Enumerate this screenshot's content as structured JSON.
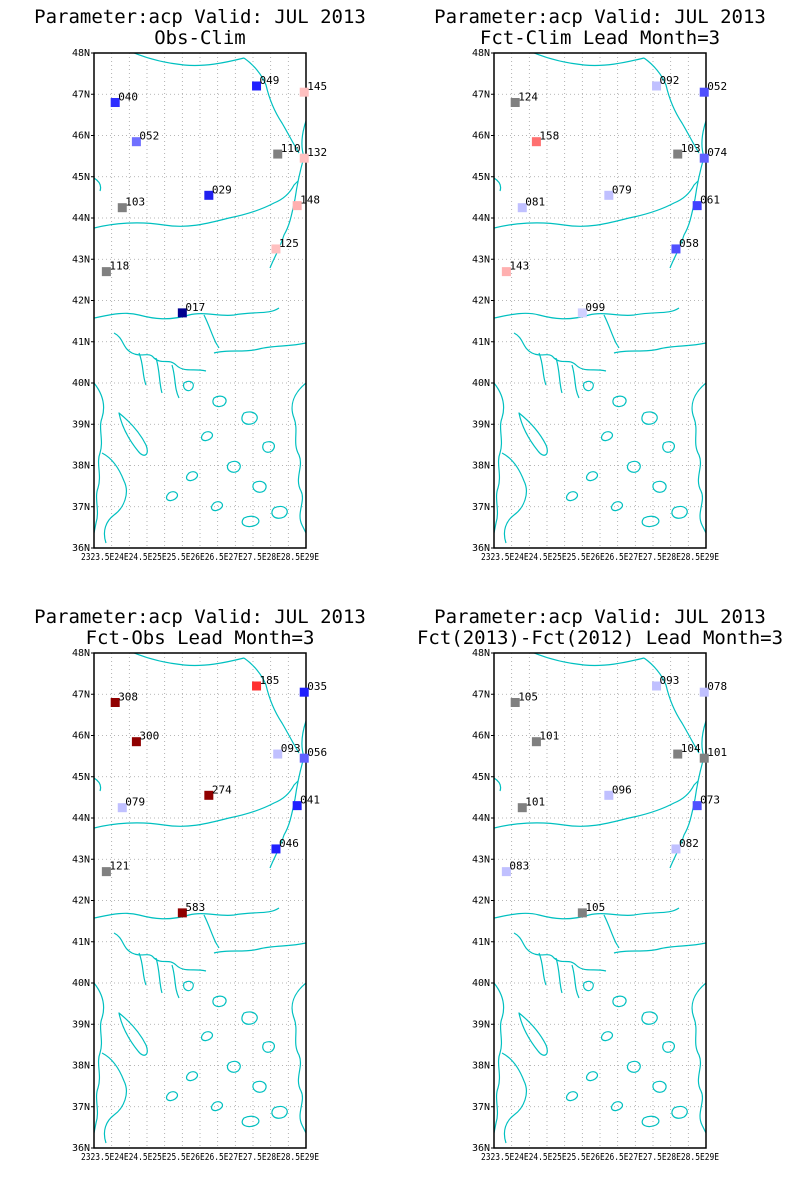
{
  "colors": {
    "coast": "#00c0c0",
    "grid": "#a0a0a0",
    "frame": "#000000",
    "text": "#000000"
  },
  "axes": {
    "lat_range": [
      36,
      48
    ],
    "lon_range": [
      23,
      29
    ],
    "y_ticks": [
      "48N",
      "47N",
      "46N",
      "45N",
      "44N",
      "43N",
      "42N",
      "41N",
      "40N",
      "39N",
      "38N",
      "37N",
      "36N"
    ],
    "x_ticks": [
      "23E",
      "23.5E",
      "24E",
      "24.5E",
      "25E",
      "25.5E",
      "26E",
      "26.5E",
      "27E",
      "27.5E",
      "28E",
      "28.5E",
      "29E"
    ],
    "x_tick_label": "2323.5E24E24.5E25E25.5E26E26.5E27E27.5E28E28.5E29E",
    "grid": true
  },
  "panels": [
    {
      "title1": "Parameter:acp Valid: JUL 2013",
      "title2": "Obs-Clim",
      "stations": [
        {
          "lon": 23.6,
          "lat": 46.8,
          "label": "040",
          "color": "#3030ff"
        },
        {
          "lon": 24.2,
          "lat": 45.85,
          "label": "052",
          "color": "#7070ff"
        },
        {
          "lon": 23.8,
          "lat": 44.25,
          "label": "103",
          "color": "#808080"
        },
        {
          "lon": 23.35,
          "lat": 42.7,
          "label": "118",
          "color": "#808080"
        },
        {
          "lon": 25.5,
          "lat": 41.7,
          "label": "017",
          "color": "#000090"
        },
        {
          "lon": 26.25,
          "lat": 44.55,
          "label": "029",
          "color": "#2020f0"
        },
        {
          "lon": 27.6,
          "lat": 47.2,
          "label": "049",
          "color": "#2020ff"
        },
        {
          "lon": 28.2,
          "lat": 45.55,
          "label": "110",
          "color": "#808080"
        },
        {
          "lon": 28.95,
          "lat": 47.05,
          "label": "145",
          "color": "#ffc0c0"
        },
        {
          "lon": 28.95,
          "lat": 45.45,
          "label": "132",
          "color": "#ffc0c0"
        },
        {
          "lon": 28.75,
          "lat": 44.3,
          "label": "148",
          "color": "#ffb0b0"
        },
        {
          "lon": 28.15,
          "lat": 43.25,
          "label": "125",
          "color": "#ffc0c0"
        }
      ]
    },
    {
      "title1": "Parameter:acp Valid: JUL 2013",
      "title2": "Fct-Clim Lead Month=3",
      "stations": [
        {
          "lon": 23.6,
          "lat": 46.8,
          "label": "124",
          "color": "#808080"
        },
        {
          "lon": 24.2,
          "lat": 45.85,
          "label": "158",
          "color": "#ff7070"
        },
        {
          "lon": 23.8,
          "lat": 44.25,
          "label": "081",
          "color": "#c0c0ff"
        },
        {
          "lon": 23.35,
          "lat": 42.7,
          "label": "143",
          "color": "#ffb0b0"
        },
        {
          "lon": 25.5,
          "lat": 41.7,
          "label": "099",
          "color": "#d0d0ff"
        },
        {
          "lon": 26.25,
          "lat": 44.55,
          "label": "079",
          "color": "#c0c0ff"
        },
        {
          "lon": 27.6,
          "lat": 47.2,
          "label": "092",
          "color": "#c0c0ff"
        },
        {
          "lon": 28.2,
          "lat": 45.55,
          "label": "103",
          "color": "#808080"
        },
        {
          "lon": 28.95,
          "lat": 47.05,
          "label": "052",
          "color": "#5050ff"
        },
        {
          "lon": 28.95,
          "lat": 45.45,
          "label": "074",
          "color": "#6060ff"
        },
        {
          "lon": 28.75,
          "lat": 44.3,
          "label": "061",
          "color": "#4040ff"
        },
        {
          "lon": 28.15,
          "lat": 43.25,
          "label": "058",
          "color": "#5050ff"
        }
      ]
    },
    {
      "title1": "Parameter:acp Valid: JUL 2013",
      "title2": "Fct-Obs Lead Month=3",
      "stations": [
        {
          "lon": 23.6,
          "lat": 46.8,
          "label": "308",
          "color": "#900000"
        },
        {
          "lon": 24.2,
          "lat": 45.85,
          "label": "300",
          "color": "#900000"
        },
        {
          "lon": 23.8,
          "lat": 44.25,
          "label": "079",
          "color": "#c0c0ff"
        },
        {
          "lon": 23.35,
          "lat": 42.7,
          "label": "121",
          "color": "#808080"
        },
        {
          "lon": 25.5,
          "lat": 41.7,
          "label": "583",
          "color": "#900000"
        },
        {
          "lon": 26.25,
          "lat": 44.55,
          "label": "274",
          "color": "#900000"
        },
        {
          "lon": 27.6,
          "lat": 47.2,
          "label": "185",
          "color": "#ff3030"
        },
        {
          "lon": 28.2,
          "lat": 45.55,
          "label": "093",
          "color": "#c0c0ff"
        },
        {
          "lon": 28.95,
          "lat": 47.05,
          "label": "035",
          "color": "#2020ff"
        },
        {
          "lon": 28.95,
          "lat": 45.45,
          "label": "056",
          "color": "#6060ff"
        },
        {
          "lon": 28.75,
          "lat": 44.3,
          "label": "041",
          "color": "#2020ff"
        },
        {
          "lon": 28.15,
          "lat": 43.25,
          "label": "046",
          "color": "#2020ff"
        }
      ]
    },
    {
      "title1": "Parameter:acp Valid: JUL 2013",
      "title2": "Fct(2013)-Fct(2012) Lead Month=3",
      "stations": [
        {
          "lon": 23.6,
          "lat": 46.8,
          "label": "105",
          "color": "#808080"
        },
        {
          "lon": 24.2,
          "lat": 45.85,
          "label": "101",
          "color": "#808080"
        },
        {
          "lon": 23.8,
          "lat": 44.25,
          "label": "101",
          "color": "#808080"
        },
        {
          "lon": 23.35,
          "lat": 42.7,
          "label": "083",
          "color": "#c0c0ff"
        },
        {
          "lon": 25.5,
          "lat": 41.7,
          "label": "105",
          "color": "#808080"
        },
        {
          "lon": 26.25,
          "lat": 44.55,
          "label": "096",
          "color": "#c0c0ff"
        },
        {
          "lon": 27.6,
          "lat": 47.2,
          "label": "093",
          "color": "#c0c0ff"
        },
        {
          "lon": 28.2,
          "lat": 45.55,
          "label": "104",
          "color": "#808080"
        },
        {
          "lon": 28.95,
          "lat": 47.05,
          "label": "078",
          "color": "#c0c0ff"
        },
        {
          "lon": 28.95,
          "lat": 45.45,
          "label": "101",
          "color": "#808080"
        },
        {
          "lon": 28.75,
          "lat": 44.3,
          "label": "073",
          "color": "#5050ff"
        },
        {
          "lon": 28.15,
          "lat": 43.25,
          "label": "082",
          "color": "#c0c0ff"
        }
      ]
    }
  ]
}
